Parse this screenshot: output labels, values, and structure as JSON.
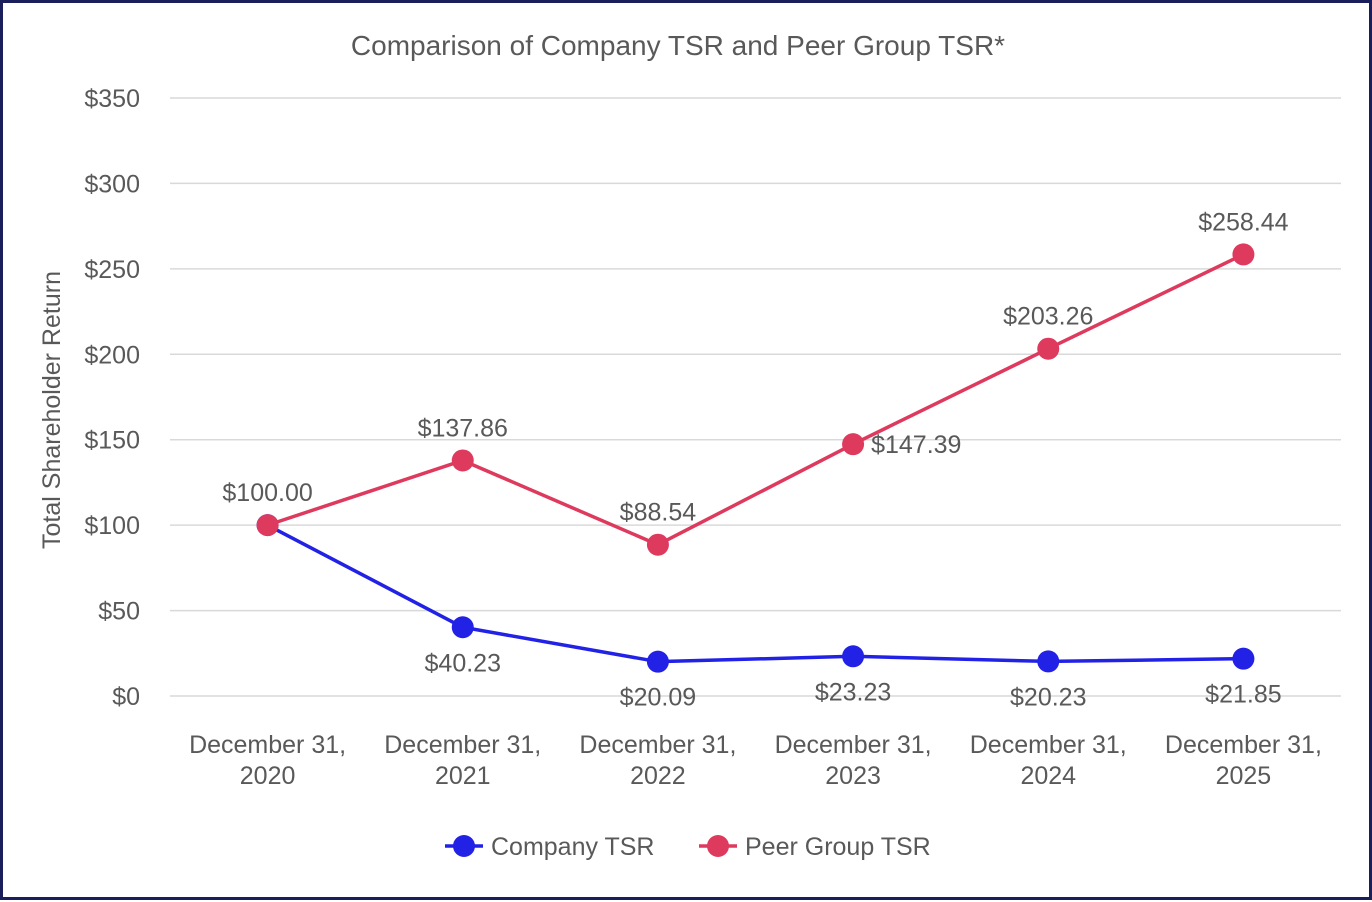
{
  "chart_data": {
    "type": "line",
    "title": "Comparison of Company TSR and Peer Group TSR*",
    "xlabel": "",
    "ylabel": "Total Shareholder Return",
    "categories": [
      [
        "December 31,",
        "2020"
      ],
      [
        "December 31,",
        "2021"
      ],
      [
        "December 31,",
        "2022"
      ],
      [
        "December 31,",
        "2023"
      ],
      [
        "December 31,",
        "2024"
      ],
      [
        "December 31,",
        "2025"
      ]
    ],
    "ylim": [
      0,
      350
    ],
    "yticks": [
      0,
      50,
      100,
      150,
      200,
      250,
      300,
      350
    ],
    "ytick_labels": [
      "$0",
      "$50",
      "$100",
      "$150",
      "$200",
      "$250",
      "$300",
      "$350"
    ],
    "grid": true,
    "legend_position": "bottom",
    "series": [
      {
        "name": "Company TSR",
        "color": "#2222e6",
        "values": [
          100.0,
          40.23,
          20.09,
          23.23,
          20.23,
          21.85
        ],
        "labels": [
          "",
          "$40.23",
          "$20.09",
          "$23.23",
          "$20.23",
          "$21.85"
        ],
        "label_position": "below"
      },
      {
        "name": "Peer Group TSR",
        "color": "#dd3a5e",
        "values": [
          100.0,
          137.86,
          88.54,
          147.39,
          203.26,
          258.44
        ],
        "labels": [
          "$100.00",
          "$137.86",
          "$88.54",
          "$147.39",
          "$203.26",
          "$258.44"
        ],
        "label_position": "above"
      }
    ]
  }
}
